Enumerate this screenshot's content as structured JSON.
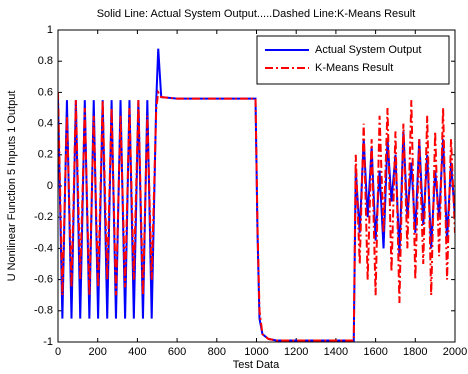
{
  "chart_data": {
    "type": "line",
    "title": "Solid Line: Actual System Output.....Dashed Line:K-Means Result",
    "xlabel": "Test Data",
    "ylabel": "U Nonlinear Function 5 Inputs 1 Output",
    "x": [
      0,
      22,
      45,
      68,
      90,
      112,
      135,
      158,
      180,
      202,
      225,
      248,
      270,
      292,
      315,
      338,
      360,
      382,
      405,
      428,
      450,
      472,
      495,
      505,
      520,
      600,
      700,
      800,
      900,
      995,
      1005,
      1015,
      1030,
      1060,
      1100,
      1200,
      1300,
      1400,
      1490,
      1500,
      1520,
      1540,
      1560,
      1580,
      1600,
      1620,
      1640,
      1660,
      1680,
      1700,
      1720,
      1740,
      1760,
      1780,
      1800,
      1820,
      1840,
      1860,
      1880,
      1900,
      1920,
      1940,
      1960,
      1980,
      2000
    ],
    "series": [
      {
        "name": "Actual System Output",
        "color": "#0000ff",
        "style": "solid",
        "values": [
          0.55,
          -0.85,
          0.55,
          -0.85,
          0.55,
          -0.85,
          0.55,
          -0.85,
          0.55,
          -0.85,
          0.55,
          -0.85,
          0.55,
          -0.85,
          0.55,
          -0.85,
          0.55,
          -0.85,
          0.55,
          -0.85,
          0.55,
          -0.85,
          0.55,
          0.88,
          0.57,
          0.56,
          0.56,
          0.56,
          0.56,
          0.56,
          -0.3,
          -0.85,
          -0.95,
          -0.98,
          -0.99,
          -0.99,
          -0.99,
          -0.99,
          -0.99,
          0.1,
          -0.3,
          0.3,
          -0.2,
          0.25,
          -0.35,
          0.1,
          -0.4,
          0.3,
          -0.1,
          0.2,
          -0.45,
          0.35,
          -0.2,
          0.15,
          -0.3,
          0.3,
          -0.25,
          0.2,
          -0.4,
          0.1,
          -0.2,
          0.3,
          -0.35,
          0.15,
          -0.2
        ]
      },
      {
        "name": "K-Means Result",
        "color": "#ff0000",
        "style": "dashdot",
        "values": [
          0.6,
          -0.7,
          0.45,
          -0.65,
          0.55,
          -0.6,
          0.5,
          -0.7,
          0.45,
          -0.65,
          0.55,
          -0.6,
          0.5,
          -0.7,
          0.45,
          -0.65,
          0.5,
          -0.6,
          0.55,
          -0.7,
          0.45,
          -0.6,
          0.5,
          0.6,
          0.57,
          0.56,
          0.56,
          0.56,
          0.56,
          0.56,
          -0.25,
          -0.8,
          -0.95,
          -0.98,
          -0.99,
          -0.99,
          -0.99,
          -0.99,
          -0.99,
          0.2,
          -0.5,
          0.4,
          -0.6,
          0.3,
          -0.7,
          0.45,
          -0.3,
          0.5,
          -0.55,
          0.35,
          -0.75,
          0.4,
          -0.4,
          0.55,
          -0.6,
          0.3,
          -0.5,
          0.45,
          -0.7,
          0.35,
          -0.45,
          0.5,
          -0.6,
          0.3,
          -0.3
        ]
      }
    ],
    "xlim": [
      0,
      2000
    ],
    "xticks": [
      0,
      200,
      400,
      600,
      800,
      1000,
      1200,
      1400,
      1600,
      1800,
      2000
    ],
    "ylim": [
      -1,
      1
    ],
    "yticks": [
      -1,
      -0.8,
      -0.6,
      -0.4,
      -0.2,
      0,
      0.2,
      0.4,
      0.6,
      0.8,
      1
    ],
    "legend": "upper right",
    "grid": false
  }
}
